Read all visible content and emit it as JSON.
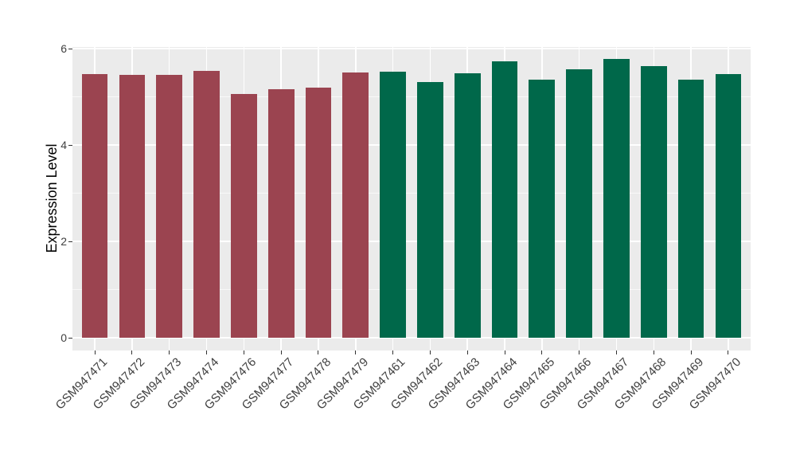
{
  "chart_data": {
    "type": "bar",
    "title": "",
    "xlabel": "",
    "ylabel": "Expression Level",
    "categories": [
      "GSM947471",
      "GSM947472",
      "GSM947473",
      "GSM947474",
      "GSM947476",
      "GSM947477",
      "GSM947478",
      "GSM947479",
      "GSM947461",
      "GSM947462",
      "GSM947463",
      "GSM947464",
      "GSM947465",
      "GSM947466",
      "GSM947467",
      "GSM947468",
      "GSM947469",
      "GSM947470"
    ],
    "values": [
      5.47,
      5.45,
      5.45,
      5.54,
      5.06,
      5.16,
      5.19,
      5.5,
      5.52,
      5.31,
      5.48,
      5.74,
      5.36,
      5.57,
      5.79,
      5.64,
      5.36,
      5.47
    ],
    "groups": [
      "maroon",
      "maroon",
      "maroon",
      "maroon",
      "maroon",
      "maroon",
      "maroon",
      "maroon",
      "green",
      "green",
      "green",
      "green",
      "green",
      "green",
      "green",
      "green",
      "green",
      "green"
    ],
    "group_colors": {
      "maroon": "#9B4450",
      "green": "#00684A"
    },
    "yticks_major": [
      0,
      2,
      4,
      6
    ],
    "yticks_minor": [
      1,
      3,
      5
    ],
    "ylim": [
      -0.26,
      6.03
    ],
    "bar_width_fraction": 0.7,
    "legend": "none",
    "grid": "major+minor horizontal, major vertical per category",
    "panel_bg": "#EBEBEB",
    "grid_color": "#FFFFFF",
    "tick_color": "#333333",
    "tick_label_color": "#404040",
    "axis_title_color": "#000000"
  }
}
